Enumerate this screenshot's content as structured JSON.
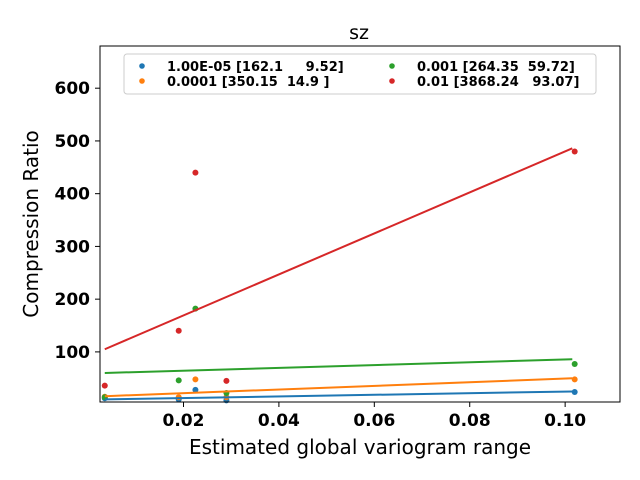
{
  "chart_data": {
    "type": "scatter",
    "title": "sz",
    "xlabel": "Estimated global variogram range",
    "ylabel": "Compression Ratio",
    "xlim": [
      0.0025,
      0.1115
    ],
    "ylim": [
      5,
      680
    ],
    "xticks": [
      0.02,
      0.04,
      0.06,
      0.08,
      0.1
    ],
    "xtick_labels": [
      "0.02",
      "0.04",
      "0.06",
      "0.08",
      "0.10"
    ],
    "yticks": [
      100,
      200,
      300,
      400,
      500,
      600
    ],
    "ytick_labels": [
      "100",
      "200",
      "300",
      "400",
      "500",
      "600"
    ],
    "grid": false,
    "legend_position": "top-center",
    "series": [
      {
        "name": "1.00E-05 [162.1     9.52]",
        "color": "#1f77b4",
        "points": [
          [
            0.0035,
            12
          ],
          [
            0.019,
            10
          ],
          [
            0.0225,
            28
          ],
          [
            0.029,
            8
          ],
          [
            0.102,
            24
          ]
        ],
        "fit": [
          [
            0.0035,
            10
          ],
          [
            0.1015,
            25
          ]
        ]
      },
      {
        "name": "0.0001 [350.15  14.9 ]",
        "color": "#ff7f0e",
        "points": [
          [
            0.0035,
            15
          ],
          [
            0.019,
            14
          ],
          [
            0.0225,
            48
          ],
          [
            0.029,
            14
          ],
          [
            0.102,
            48
          ]
        ],
        "fit": [
          [
            0.0035,
            16
          ],
          [
            0.1015,
            50
          ]
        ]
      },
      {
        "name": "0.001 [264.35  59.72]",
        "color": "#2ca02c",
        "points": [
          [
            0.0035,
            14
          ],
          [
            0.019,
            46
          ],
          [
            0.0225,
            182
          ],
          [
            0.029,
            22
          ],
          [
            0.102,
            77
          ]
        ],
        "fit": [
          [
            0.0035,
            60
          ],
          [
            0.1015,
            86
          ]
        ]
      },
      {
        "name": "0.01 [3868.24   93.07]",
        "color": "#d62728",
        "points": [
          [
            0.0035,
            36
          ],
          [
            0.019,
            140
          ],
          [
            0.0225,
            440
          ],
          [
            0.029,
            45
          ],
          [
            0.102,
            480
          ]
        ],
        "fit": [
          [
            0.0035,
            105
          ],
          [
            0.1015,
            486
          ]
        ]
      }
    ]
  }
}
